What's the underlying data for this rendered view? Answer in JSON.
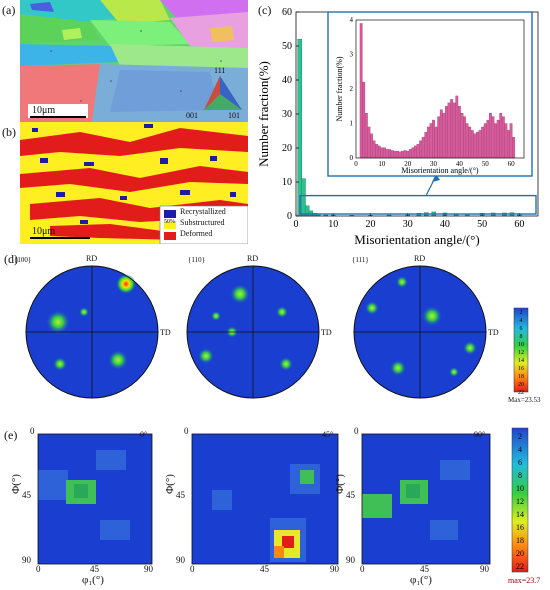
{
  "panels": {
    "a": {
      "label": "(a)",
      "scale_bar": "10μm",
      "ipf_key": {
        "top": "111",
        "left": "001",
        "right": "101"
      }
    },
    "b": {
      "label": "(b)",
      "scale_bar": "10μm",
      "legend": [
        {
          "name": "Recrystallized",
          "color": "#1c1ca8"
        },
        {
          "name": "Substructured",
          "color": "#ffee22"
        },
        {
          "name": "Deformed",
          "color": "#e21b1b"
        }
      ],
      "legend_inset": "50%"
    },
    "c": {
      "label": "(c)"
    },
    "d": {
      "label": "(d)",
      "poles": [
        "{100}",
        "{110}",
        "{111}"
      ],
      "rd": "RD",
      "td": "TD",
      "colorbar_ticks": [
        "2",
        "4",
        "6",
        "8",
        "10",
        "12",
        "14",
        "16",
        "18",
        "20",
        "22"
      ],
      "max_text": "Max=23.53"
    },
    "e": {
      "label": "(e)",
      "sections": [
        "0°",
        "45°",
        "90°"
      ],
      "y_label": "Φ(°)",
      "x_label": "φ₁(°)",
      "ticks": [
        "0",
        "45",
        "90"
      ],
      "colorbar_ticks": [
        "2",
        "4",
        "6",
        "8",
        "10",
        "12",
        "14",
        "16",
        "18",
        "20",
        "22"
      ],
      "max_text": "max=23.7"
    }
  },
  "chart_data": {
    "type": "bar",
    "title": "",
    "xlabel": "Misorientation angle/(°)",
    "ylabel": "Number fraction(%)",
    "xlim": [
      0,
      65
    ],
    "ylim": [
      0,
      60
    ],
    "xticks": [
      "0",
      "10",
      "20",
      "30",
      "40",
      "50",
      "60"
    ],
    "yticks": [
      "0",
      "10",
      "20",
      "30",
      "40",
      "50",
      "60"
    ],
    "bar_color": "#2fc08f",
    "bins": [
      {
        "x": 1,
        "y": 52
      },
      {
        "x": 2,
        "y": 11
      },
      {
        "x": 3,
        "y": 3
      },
      {
        "x": 4,
        "y": 1.5
      },
      {
        "x": 5,
        "y": 0.8
      },
      {
        "x": 6,
        "y": 0.5
      },
      {
        "x": 8,
        "y": 0.3
      },
      {
        "x": 10,
        "y": 0.3
      },
      {
        "x": 15,
        "y": 0.2
      },
      {
        "x": 20,
        "y": 0.2
      },
      {
        "x": 25,
        "y": 0.3
      },
      {
        "x": 30,
        "y": 0.6
      },
      {
        "x": 33,
        "y": 0.8
      },
      {
        "x": 35,
        "y": 1.0
      },
      {
        "x": 37,
        "y": 1.2
      },
      {
        "x": 40,
        "y": 0.9
      },
      {
        "x": 43,
        "y": 0.7
      },
      {
        "x": 46,
        "y": 0.6
      },
      {
        "x": 50,
        "y": 0.8
      },
      {
        "x": 53,
        "y": 0.9
      },
      {
        "x": 56,
        "y": 0.9
      },
      {
        "x": 58,
        "y": 1.0
      },
      {
        "x": 60,
        "y": 0.7
      }
    ],
    "inset": {
      "type": "bar",
      "xlabel": "Misorientation angle/(°)",
      "ylabel": "Number fraction(%)",
      "xlim": [
        0,
        65
      ],
      "ylim": [
        0,
        4
      ],
      "xticks": [
        "0",
        "10",
        "20",
        "30",
        "40",
        "50",
        "60"
      ],
      "yticks": [
        "0",
        "1",
        "2",
        "3",
        "4"
      ],
      "bar_color": "#d65c9a",
      "x": [
        2,
        3,
        4,
        5,
        6,
        7,
        8,
        9,
        10,
        11,
        12,
        13,
        14,
        15,
        16,
        17,
        18,
        19,
        20,
        21,
        22,
        23,
        24,
        25,
        26,
        27,
        28,
        29,
        30,
        31,
        32,
        33,
        34,
        35,
        36,
        37,
        38,
        39,
        40,
        41,
        42,
        43,
        44,
        45,
        46,
        47,
        48,
        49,
        50,
        51,
        52,
        53,
        54,
        55,
        56,
        57,
        58,
        59,
        60,
        61
      ],
      "values": [
        3.9,
        2.2,
        1.3,
        0.9,
        0.7,
        0.5,
        0.4,
        0.35,
        0.3,
        0.3,
        0.25,
        0.25,
        0.22,
        0.2,
        0.2,
        0.18,
        0.2,
        0.22,
        0.2,
        0.25,
        0.3,
        0.35,
        0.4,
        0.5,
        0.6,
        0.75,
        0.9,
        1.0,
        1.1,
        0.9,
        1.2,
        1.4,
        1.3,
        1.5,
        1.6,
        1.7,
        1.6,
        1.8,
        1.5,
        1.3,
        1.2,
        1.0,
        0.9,
        0.8,
        0.7,
        0.75,
        0.8,
        0.9,
        1.0,
        1.1,
        1.3,
        1.2,
        1.0,
        1.1,
        1.3,
        1.2,
        1.0,
        0.8,
        1.0,
        0.6
      ]
    }
  }
}
